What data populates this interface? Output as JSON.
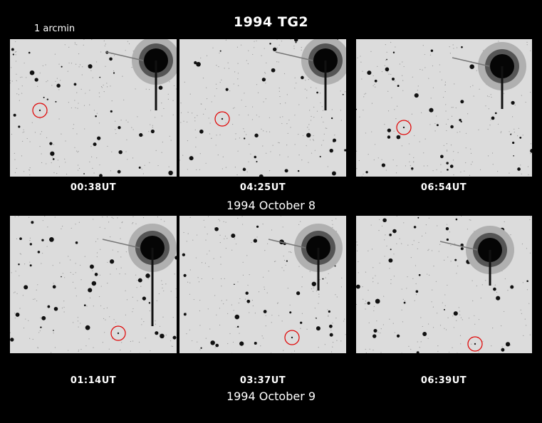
{
  "title": "1994 TG2",
  "scale_label": "1 arcmin",
  "row1": {
    "date": "1994 October 8",
    "panels": [
      {
        "time": "00:38UT"
      },
      {
        "time": "04:25UT"
      },
      {
        "time": "06:54UT"
      }
    ]
  },
  "row2": {
    "date": "1994 October 9",
    "panels": [
      {
        "time": "01:14UT"
      },
      {
        "time": "03:37UT"
      },
      {
        "time": "06:39UT"
      }
    ]
  },
  "colors": {
    "background": "#000000",
    "sky": "#dcdcdc",
    "marker": "#e00000"
  }
}
